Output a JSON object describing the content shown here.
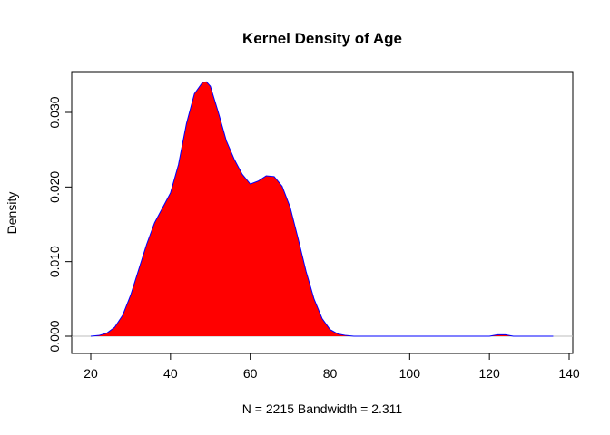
{
  "chart_data": {
    "type": "area",
    "title": "Kernel Density of Age",
    "xlabel": "N = 2215   Bandwidth = 2.311",
    "ylabel": "Density",
    "xlim": [
      15,
      140
    ],
    "ylim": [
      0,
      0.034
    ],
    "x_ticks": [
      20,
      40,
      60,
      80,
      100,
      120,
      140
    ],
    "y_ticks": [
      0.0,
      0.01,
      0.02,
      0.03
    ],
    "x_tick_labels": [
      "20",
      "40",
      "60",
      "80",
      "100",
      "120",
      "140"
    ],
    "y_tick_labels": [
      "0.000",
      "0.010",
      "0.020",
      "0.030"
    ],
    "grid": false,
    "baseline_color": "#bebebe",
    "fill_color": "#ff0000",
    "line_color": "#0000ff",
    "series": [
      {
        "x": [
          20,
          22,
          24,
          26,
          28,
          30,
          32,
          34,
          36,
          38,
          40,
          42,
          44,
          46,
          48,
          49,
          50,
          52,
          54,
          56,
          58,
          60,
          62,
          64,
          66,
          68,
          70,
          72,
          74,
          76,
          78,
          80,
          82,
          84,
          86,
          90,
          100,
          110,
          115,
          118,
          120,
          122,
          124,
          126,
          128,
          130,
          136
        ],
        "y": [
          0.0,
          0.0001,
          0.0004,
          0.0012,
          0.0028,
          0.0055,
          0.0089,
          0.0123,
          0.0152,
          0.0172,
          0.0192,
          0.023,
          0.0285,
          0.0325,
          0.034,
          0.0341,
          0.0335,
          0.03,
          0.0262,
          0.0237,
          0.0217,
          0.0204,
          0.0208,
          0.0215,
          0.0214,
          0.0201,
          0.0173,
          0.0131,
          0.0087,
          0.005,
          0.0024,
          0.0009,
          0.0003,
          0.0001,
          0.0,
          0.0,
          0.0,
          0.0,
          0.0,
          0.0,
          0.0,
          0.0002,
          0.0002,
          0.0,
          0.0,
          0.0,
          0.0
        ]
      }
    ]
  }
}
